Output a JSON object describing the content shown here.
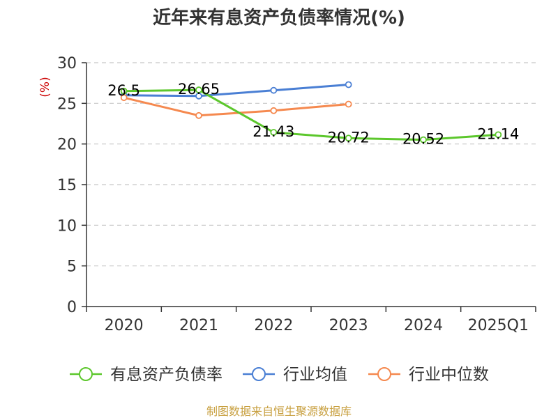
{
  "chart_data": {
    "type": "line",
    "title": "近年来有息资产负债率情况(%)",
    "ylabel": "(%)",
    "xlabel": "",
    "categories": [
      "2020",
      "2021",
      "2022",
      "2023",
      "2024",
      "2025Q1"
    ],
    "ylim": [
      0,
      30
    ],
    "yticks": [
      0,
      5,
      10,
      15,
      20,
      25,
      30
    ],
    "grid": true,
    "legend_position": "bottom",
    "series": [
      {
        "name": "有息资产负债率",
        "color": "#5cc72c",
        "values": [
          26.5,
          26.65,
          21.43,
          20.72,
          20.52,
          21.14
        ],
        "labels": [
          "26.5",
          "26.65",
          "21.43",
          "20.72",
          "20.52",
          "21.14"
        ]
      },
      {
        "name": "行业均值",
        "color": "#4a7fd4",
        "values": [
          26.0,
          25.9,
          26.6,
          27.3,
          null,
          null
        ]
      },
      {
        "name": "行业中位数",
        "color": "#f5894f",
        "values": [
          25.7,
          23.5,
          24.1,
          24.9,
          null,
          null
        ]
      }
    ],
    "source": "制图数据来自恒生聚源数据库"
  }
}
